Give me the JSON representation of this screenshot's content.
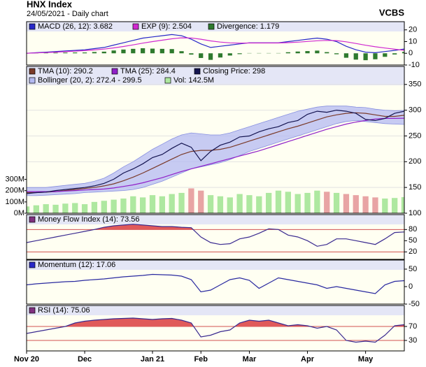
{
  "header": {
    "title": "HNX Index",
    "subtitle": "24/05/2021 - Daily chart",
    "brand": "VCBS"
  },
  "chart_data": [
    {
      "type": "macd",
      "ylim": [
        -10,
        27
      ],
      "yticks": [
        20,
        10,
        0,
        -10
      ],
      "series": [
        {
          "name": "MACD (26, 12): 3.682",
          "color": "#2828c8",
          "style": "line",
          "values": [
            0,
            0.5,
            1,
            1.5,
            2,
            2.5,
            3,
            4,
            5,
            7,
            9,
            11,
            13,
            14,
            15,
            16,
            15,
            12,
            8,
            5,
            6,
            7,
            8,
            9,
            9,
            9,
            9,
            10,
            11,
            12,
            13,
            12,
            10,
            6,
            3,
            1,
            0.5,
            1.5,
            2.5,
            3.682
          ]
        },
        {
          "name": "EXP (9): 2.504",
          "color": "#d028d0",
          "style": "line",
          "values": [
            0,
            0.3,
            0.6,
            1,
            1.4,
            1.8,
            2.3,
            2.9,
            3.6,
            4.6,
            5.8,
            7.2,
            8.7,
            10,
            11.2,
            12.4,
            13.2,
            13.1,
            12,
            10.6,
            9.6,
            8.9,
            8.7,
            8.8,
            8.8,
            8.8,
            8.8,
            9.1,
            9.5,
            10.1,
            10.7,
            11,
            10.8,
            9.8,
            8.4,
            6.9,
            5.6,
            4.5,
            3.5,
            2.504
          ]
        },
        {
          "name": "Divergence: 1.179",
          "color": "#2e7a2e",
          "style": "bar",
          "values": [
            0,
            0.2,
            0.4,
            0.5,
            0.6,
            0.7,
            0.7,
            1.1,
            1.4,
            2.4,
            3.2,
            3.8,
            4.3,
            4,
            3.8,
            3.6,
            1.8,
            -1.1,
            -4,
            -5.6,
            -3.6,
            -1.9,
            -0.7,
            0.2,
            0.2,
            0.2,
            0.2,
            0.9,
            1.5,
            1.9,
            2.3,
            1,
            -0.8,
            -3.8,
            -5.4,
            -5.9,
            -5.1,
            -3,
            -1,
            1.179
          ]
        }
      ]
    },
    {
      "type": "price",
      "ylim": [
        100,
        385
      ],
      "yticks": [
        350,
        300,
        250,
        200,
        150,
        100
      ],
      "grid": true,
      "y2lim": [
        0,
        1300000000
      ],
      "y2ticks": [
        {
          "value": 300000000,
          "label": "300M"
        },
        {
          "value": 200000000,
          "label": "200M"
        },
        {
          "value": 100000000,
          "label": "100M"
        },
        {
          "value": 0,
          "label": "0M"
        }
      ],
      "series": [
        {
          "name": "TMA (10): 290.2",
          "color": "#7a3a2a",
          "style": "line",
          "values": [
            140,
            140,
            141,
            142,
            144,
            146,
            148,
            150,
            153,
            157,
            163,
            170,
            178,
            187,
            196,
            205,
            214,
            220,
            222,
            222,
            224,
            228,
            234,
            240,
            246,
            252,
            258,
            264,
            269,
            275,
            281,
            287,
            291,
            294,
            295,
            294,
            291,
            288,
            288,
            290.2
          ]
        },
        {
          "name": "TMA (25): 284.4",
          "color": "#9020c8",
          "style": "line",
          "values": [
            142,
            142,
            142,
            142,
            143,
            144,
            145,
            146,
            147,
            149,
            152,
            155,
            159,
            164,
            169,
            175,
            181,
            186,
            191,
            196,
            201,
            206,
            211,
            216,
            221,
            227,
            233,
            239,
            245,
            251,
            257,
            263,
            268,
            273,
            277,
            280,
            283,
            284,
            284,
            284.4
          ]
        },
        {
          "name": "Closing Price: 298",
          "color": "#141450",
          "style": "line",
          "values": [
            138,
            140,
            141,
            144,
            146,
            148,
            150,
            153,
            158,
            166,
            178,
            186,
            196,
            208,
            214,
            226,
            236,
            228,
            202,
            220,
            232,
            238,
            248,
            250,
            258,
            264,
            268,
            276,
            280,
            292,
            298,
            296,
            300,
            298,
            294,
            282,
            280,
            284,
            294,
            298
          ]
        },
        {
          "name": "Bollinger (20, 2): 272.4 - 299.5",
          "color": "#b4baf2",
          "style": "band",
          "values": [
            150,
            150,
            150,
            152,
            154,
            156,
            158,
            162,
            168,
            178,
            190,
            200,
            212,
            224,
            234,
            244,
            252,
            256,
            254,
            252,
            252,
            256,
            262,
            268,
            274,
            280,
            286,
            292,
            298,
            302,
            306,
            308,
            308,
            308,
            306,
            305,
            302,
            300,
            299,
            299.5
          ],
          "lower": [
            134,
            134,
            135,
            136,
            137,
            138,
            140,
            141,
            142,
            143,
            144,
            146,
            150,
            156,
            162,
            170,
            178,
            186,
            190,
            194,
            198,
            204,
            212,
            220,
            226,
            232,
            238,
            244,
            250,
            256,
            262,
            268,
            274,
            278,
            280,
            278,
            276,
            274,
            273,
            272.4
          ]
        },
        {
          "name": "Vol: 142.5M",
          "color": "#aee8a0",
          "down_color": "#e8a4a4",
          "style": "bar",
          "axis": "y2",
          "values": [
            60000000,
            70000000,
            80000000,
            75000000,
            85000000,
            90000000,
            80000000,
            100000000,
            110000000,
            120000000,
            130000000,
            150000000,
            140000000,
            160000000,
            150000000,
            170000000,
            180000000,
            220000000,
            200000000,
            160000000,
            150000000,
            140000000,
            170000000,
            160000000,
            150000000,
            180000000,
            200000000,
            190000000,
            170000000,
            180000000,
            200000000,
            190000000,
            180000000,
            170000000,
            160000000,
            150000000,
            140000000,
            130000000,
            135000000,
            142500000
          ]
        }
      ]
    },
    {
      "type": "oscillator",
      "ylim": [
        0,
        120
      ],
      "yticks": [
        80,
        50,
        20
      ],
      "ref_lines": [
        80,
        20
      ],
      "series": [
        {
          "name": "Money Flow Index (14): 73.56",
          "color": "#3a2a90",
          "legend_color": "#803080",
          "style": "line",
          "values": [
            45,
            50,
            55,
            60,
            65,
            70,
            75,
            80,
            86,
            90,
            92,
            94,
            92,
            90,
            88,
            88,
            86,
            85,
            60,
            45,
            40,
            42,
            55,
            60,
            70,
            82,
            80,
            65,
            60,
            50,
            35,
            40,
            55,
            55,
            50,
            45,
            40,
            55,
            72,
            73.56
          ]
        }
      ]
    },
    {
      "type": "oscillator",
      "ylim": [
        -50,
        76
      ],
      "yticks": [
        50,
        0,
        -50
      ],
      "series": [
        {
          "name": "Momentum (12): 17.06",
          "color": "#2a2aa0",
          "legend_color": "#2828c8",
          "style": "line",
          "values": [
            5,
            8,
            10,
            12,
            14,
            15,
            18,
            20,
            22,
            25,
            28,
            30,
            32,
            35,
            34,
            33,
            30,
            20,
            -15,
            -10,
            5,
            20,
            25,
            18,
            -5,
            10,
            25,
            20,
            15,
            10,
            5,
            -5,
            0,
            -5,
            -10,
            -15,
            -20,
            5,
            15,
            17.06
          ]
        }
      ]
    },
    {
      "type": "oscillator",
      "ylim": [
        0,
        130
      ],
      "yticks": [
        70,
        30
      ],
      "ref_lines": [
        70,
        30
      ],
      "categories": [
        "Nov 20",
        null,
        null,
        null,
        null,
        null,
        "Dec",
        null,
        null,
        null,
        null,
        null,
        null,
        "Jan 21",
        null,
        null,
        null,
        null,
        "Feb",
        null,
        null,
        null,
        null,
        "Mar",
        null,
        null,
        null,
        null,
        null,
        "Apr",
        null,
        null,
        null,
        null,
        null,
        "May",
        null,
        null,
        null,
        null
      ],
      "series": [
        {
          "name": "RSI (14): 75.06",
          "color": "#3a2a90",
          "legend_color": "#803080",
          "style": "line",
          "values": [
            50,
            55,
            60,
            65,
            70,
            80,
            85,
            88,
            90,
            92,
            93,
            94,
            92,
            90,
            92,
            93,
            88,
            80,
            40,
            45,
            55,
            60,
            80,
            88,
            85,
            88,
            80,
            72,
            75,
            72,
            65,
            70,
            60,
            30,
            25,
            28,
            25,
            45,
            72,
            75.06
          ]
        }
      ]
    }
  ]
}
